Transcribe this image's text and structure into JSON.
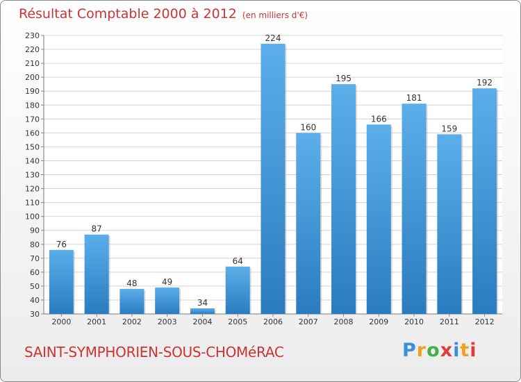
{
  "header": {
    "title": "Résultat Comptable 2000 à 2012",
    "subtitle": "(en milliers d'€)"
  },
  "footer": {
    "town": "SAINT-SYMPHORIEN-SOUS-CHOMéRAC",
    "logo": [
      "P",
      "r",
      "o",
      "x",
      "i",
      "t",
      "i"
    ]
  },
  "colors": {
    "bar_light": "#5caeea",
    "bar_dark": "#2a7cbf",
    "title": "#cc3333",
    "grid": "#d4d4d4"
  },
  "chart_data": {
    "type": "bar",
    "title": "Résultat Comptable 2000 à 2012",
    "subtitle": "(en milliers d'€)",
    "categories": [
      "2000",
      "2001",
      "2002",
      "2003",
      "2004",
      "2005",
      "2006",
      "2007",
      "2008",
      "2009",
      "2010",
      "2011",
      "2012"
    ],
    "values": [
      76,
      87,
      48,
      49,
      34,
      64,
      224,
      160,
      195,
      166,
      181,
      159,
      192
    ],
    "xlabel": "",
    "ylabel": "",
    "ylim": [
      30,
      230
    ],
    "ytick_step": 10,
    "grid": true
  }
}
